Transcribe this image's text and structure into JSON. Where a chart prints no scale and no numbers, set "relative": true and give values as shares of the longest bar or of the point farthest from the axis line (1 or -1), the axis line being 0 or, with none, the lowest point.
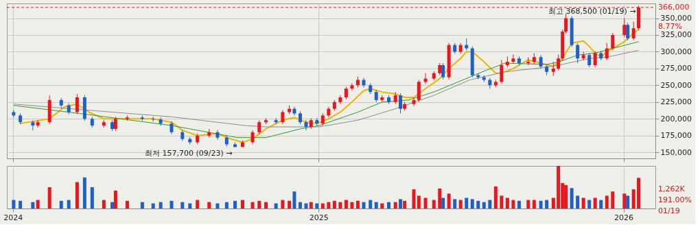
{
  "chart_data": [
    {
      "type": "candlestick",
      "x": [
        "2024-01-02",
        "2024-01-10",
        "2024-01-25",
        "2024-01-31",
        "2024-02-14",
        "2024-02-28",
        "2024-03-08",
        "2024-03-18",
        "2024-03-27",
        "2024-04-05",
        "2024-04-19",
        "2024-04-29",
        "2024-05-03",
        "2024-05-17",
        "2024-06-04",
        "2024-06-17",
        "2024-06-26",
        "2024-07-09",
        "2024-07-22",
        "2024-07-31",
        "2024-08-09",
        "2024-08-23",
        "2024-09-02",
        "2024-09-13",
        "2024-09-23",
        "2024-10-02",
        "2024-10-14",
        "2024-10-22",
        "2024-10-30",
        "2024-11-11",
        "2024-11-19",
        "2024-11-27",
        "2024-12-03",
        "2024-12-10",
        "2024-12-17",
        "2024-12-23",
        "2024-12-30",
        "2025-01-06",
        "2025-01-13",
        "2025-01-20",
        "2025-01-27",
        "2025-02-03",
        "2025-02-10",
        "2025-02-17",
        "2025-02-24",
        "2025-03-04",
        "2025-03-11",
        "2025-03-18",
        "2025-03-26",
        "2025-04-03",
        "2025-04-09",
        "2025-04-14",
        "2025-04-25",
        "2025-05-01",
        "2025-05-09",
        "2025-05-19",
        "2025-05-26",
        "2025-05-30",
        "2025-06-06",
        "2025-06-13",
        "2025-06-20",
        "2025-06-27",
        "2025-07-04",
        "2025-07-11",
        "2025-07-18",
        "2025-07-25",
        "2025-08-01",
        "2025-08-08",
        "2025-08-15",
        "2025-08-22",
        "2025-08-29",
        "2025-09-09",
        "2025-09-16",
        "2025-09-24",
        "2025-10-01",
        "2025-10-09",
        "2025-10-15",
        "2025-10-20",
        "2025-10-24",
        "2025-10-31",
        "2025-11-07",
        "2025-11-14",
        "2025-11-21",
        "2025-11-28",
        "2025-12-05",
        "2025-12-12",
        "2025-12-19",
        "2026-01-02",
        "2026-01-06",
        "2026-01-13",
        "2026-01-19"
      ],
      "ohlc": [
        [
          210000,
          213000,
          202000,
          205000
        ],
        [
          205000,
          208000,
          192000,
          195000
        ],
        [
          195000,
          198000,
          183000,
          190000
        ],
        [
          190000,
          198000,
          187000,
          195000
        ],
        [
          195000,
          235000,
          192000,
          228000
        ],
        [
          228000,
          231000,
          217000,
          220000
        ],
        [
          220000,
          223000,
          207000,
          210000
        ],
        [
          210000,
          237000,
          207000,
          232000
        ],
        [
          232000,
          235000,
          197000,
          200000
        ],
        [
          200000,
          203000,
          187000,
          190000
        ],
        [
          190000,
          198000,
          187000,
          195000
        ],
        [
          195000,
          198000,
          182000,
          185000
        ],
        [
          185000,
          203000,
          182000,
          200000
        ],
        [
          200000,
          205000,
          197000,
          202000
        ],
        [
          202000,
          205000,
          197000,
          200000
        ],
        [
          200000,
          203000,
          196000,
          199000
        ],
        [
          199000,
          202000,
          190000,
          193000
        ],
        [
          193000,
          196000,
          177000,
          180000
        ],
        [
          180000,
          183000,
          167000,
          170000
        ],
        [
          170000,
          173000,
          162000,
          165000
        ],
        [
          165000,
          178000,
          162000,
          175000
        ],
        [
          175000,
          185000,
          172000,
          180000
        ],
        [
          180000,
          183000,
          169000,
          172000
        ],
        [
          172000,
          175000,
          159000,
          162000
        ],
        [
          162000,
          165000,
          157700,
          158000
        ],
        [
          158000,
          168000,
          157900,
          165000
        ],
        [
          165000,
          183000,
          162000,
          180000
        ],
        [
          180000,
          198000,
          177000,
          195000
        ],
        [
          195000,
          201000,
          192000,
          198000
        ],
        [
          198000,
          201000,
          192000,
          195000
        ],
        [
          195000,
          213000,
          192000,
          210000
        ],
        [
          210000,
          220000,
          207000,
          215000
        ],
        [
          215000,
          218000,
          205000,
          208000
        ],
        [
          208000,
          211000,
          192000,
          195000
        ],
        [
          195000,
          198000,
          183000,
          188000
        ],
        [
          188000,
          201000,
          185000,
          198000
        ],
        [
          198000,
          201000,
          190000,
          193000
        ],
        [
          193000,
          208000,
          190000,
          205000
        ],
        [
          205000,
          218000,
          202000,
          215000
        ],
        [
          215000,
          228000,
          212000,
          225000
        ],
        [
          225000,
          235000,
          222000,
          232000
        ],
        [
          232000,
          248000,
          229000,
          245000
        ],
        [
          245000,
          253000,
          242000,
          250000
        ],
        [
          250000,
          263000,
          247000,
          258000
        ],
        [
          258000,
          261000,
          247000,
          250000
        ],
        [
          250000,
          253000,
          237000,
          240000
        ],
        [
          240000,
          243000,
          225000,
          228000
        ],
        [
          228000,
          235000,
          225000,
          232000
        ],
        [
          232000,
          235000,
          222000,
          225000
        ],
        [
          225000,
          240000,
          222000,
          235000
        ],
        [
          235000,
          238000,
          208000,
          215000
        ],
        [
          215000,
          225000,
          212000,
          222000
        ],
        [
          222000,
          231000,
          219000,
          228000
        ],
        [
          228000,
          258000,
          225000,
          255000
        ],
        [
          255000,
          268000,
          252000,
          260000
        ],
        [
          260000,
          271000,
          257000,
          268000
        ],
        [
          268000,
          283000,
          265000,
          280000
        ],
        [
          280000,
          283000,
          259000,
          262000
        ],
        [
          262000,
          313000,
          259000,
          310000
        ],
        [
          310000,
          313000,
          297000,
          300000
        ],
        [
          300000,
          313000,
          297000,
          310000
        ],
        [
          310000,
          320000,
          302000,
          305000
        ],
        [
          305000,
          308000,
          262000,
          265000
        ],
        [
          265000,
          268000,
          259000,
          262000
        ],
        [
          262000,
          265000,
          255000,
          258000
        ],
        [
          258000,
          261000,
          245000,
          250000
        ],
        [
          250000,
          258000,
          247000,
          255000
        ],
        [
          255000,
          288000,
          252000,
          280000
        ],
        [
          280000,
          293000,
          277000,
          285000
        ],
        [
          285000,
          296000,
          282000,
          290000
        ],
        [
          290000,
          293000,
          280000,
          283000
        ],
        [
          283000,
          292000,
          280000,
          285000
        ],
        [
          285000,
          298000,
          282000,
          292000
        ],
        [
          292000,
          295000,
          275000,
          278000
        ],
        [
          278000,
          281000,
          265000,
          270000
        ],
        [
          270000,
          285000,
          264000,
          275000
        ],
        [
          275000,
          296000,
          272000,
          290000
        ],
        [
          290000,
          333000,
          287000,
          330000
        ],
        [
          330000,
          357000,
          327000,
          350000
        ],
        [
          350000,
          353000,
          307000,
          310000
        ],
        [
          310000,
          313000,
          283000,
          290000
        ],
        [
          290000,
          300000,
          287000,
          295000
        ],
        [
          295000,
          298000,
          277000,
          280000
        ],
        [
          280000,
          301000,
          277000,
          298000
        ],
        [
          298000,
          301000,
          287000,
          290000
        ],
        [
          290000,
          313000,
          287000,
          305000
        ],
        [
          305000,
          328000,
          302000,
          325000
        ],
        [
          325000,
          350000,
          322000,
          340000
        ],
        [
          340000,
          343000,
          317000,
          320000
        ],
        [
          320000,
          345000,
          317000,
          335000
        ],
        [
          335000,
          368500,
          332000,
          366000
        ]
      ],
      "colors": [
        "#1f5fc8",
        "#1f5fc8",
        "#1f5fc8",
        "#e8171f",
        "#e8171f",
        "#1f5fc8",
        "#1f5fc8",
        "#e8171f",
        "#1f5fc8",
        "#1f5fc8",
        "#e8171f",
        "#1f5fc8",
        "#e8171f",
        "#e8171f",
        "#1f5fc8",
        "#1f5fc8",
        "#1f5fc8",
        "#1f5fc8",
        "#1f5fc8",
        "#1f5fc8",
        "#e8171f",
        "#e8171f",
        "#1f5fc8",
        "#1f5fc8",
        "#1f5fc8",
        "#e8171f",
        "#e8171f",
        "#e8171f",
        "#e8171f",
        "#1f5fc8",
        "#e8171f",
        "#e8171f",
        "#1f5fc8",
        "#1f5fc8",
        "#1f5fc8",
        "#e8171f",
        "#1f5fc8",
        "#e8171f",
        "#e8171f",
        "#e8171f",
        "#e8171f",
        "#e8171f",
        "#e8171f",
        "#e8171f",
        "#1f5fc8",
        "#1f5fc8",
        "#1f5fc8",
        "#e8171f",
        "#1f5fc8",
        "#e8171f",
        "#1f5fc8",
        "#e8171f",
        "#e8171f",
        "#e8171f",
        "#e8171f",
        "#e8171f",
        "#e8171f",
        "#1f5fc8",
        "#e8171f",
        "#1f5fc8",
        "#e8171f",
        "#1f5fc8",
        "#1f5fc8",
        "#1f5fc8",
        "#1f5fc8",
        "#1f5fc8",
        "#e8171f",
        "#e8171f",
        "#e8171f",
        "#e8171f",
        "#1f5fc8",
        "#e8171f",
        "#e8171f",
        "#1f5fc8",
        "#1f5fc8",
        "#e8171f",
        "#e8171f",
        "#e8171f",
        "#e8171f",
        "#1f5fc8",
        "#1f5fc8",
        "#e8171f",
        "#1f5fc8",
        "#e8171f",
        "#1f5fc8",
        "#e8171f",
        "#e8171f",
        "#e8171f",
        "#1f5fc8",
        "#e8171f",
        "#e8171f"
      ],
      "series": [
        {
          "type": "line",
          "color": "#f0b400",
          "x": [
            "2024-01-10",
            "2024-02-14",
            "2024-03-03",
            "2024-03-18",
            "2024-04-01",
            "2024-04-19",
            "2024-05-17",
            "2024-06-17",
            "2024-07-09",
            "2024-07-22",
            "2024-08-09",
            "2024-09-02",
            "2024-09-13",
            "2024-10-02",
            "2024-10-14",
            "2024-10-30",
            "2024-11-19",
            "2024-12-03",
            "2024-12-17",
            "2024-12-30",
            "2025-01-13",
            "2025-01-27",
            "2025-02-10",
            "2025-02-24",
            "2025-03-04",
            "2025-03-18",
            "2025-04-03",
            "2025-04-14",
            "2025-04-25",
            "2025-05-09",
            "2025-05-26",
            "2025-06-06",
            "2025-06-20",
            "2025-06-27",
            "2025-07-04",
            "2025-07-18",
            "2025-08-01",
            "2025-08-08",
            "2025-08-22",
            "2025-09-09",
            "2025-09-24",
            "2025-10-09",
            "2025-10-20",
            "2025-10-31",
            "2025-11-14",
            "2025-11-21",
            "2025-11-28",
            "2025-12-05",
            "2025-12-12",
            "2026-01-02",
            "2026-01-13",
            "2026-01-19"
          ],
          "values": [
            193000,
            200000,
            218000,
            222000,
            210000,
            200000,
            200000,
            200000,
            195000,
            183000,
            175000,
            178000,
            172000,
            165000,
            170000,
            185000,
            198000,
            202000,
            195000,
            193000,
            200000,
            210000,
            225000,
            242000,
            245000,
            240000,
            237000,
            232000,
            232000,
            245000,
            260000,
            275000,
            290000,
            300000,
            300000,
            285000,
            268000,
            268000,
            275000,
            288000,
            283000,
            278000,
            290000,
            313000,
            316000,
            308000,
            298000,
            292000,
            300000,
            315000,
            328000,
            333000
          ]
        },
        {
          "type": "line",
          "color": "#2e9a2e",
          "x": [
            "2024-01-02",
            "2024-04-09",
            "2024-07-09",
            "2024-09-26",
            "2024-10-30",
            "2024-12-10",
            "2025-01-02",
            "2025-02-17",
            "2025-03-18",
            "2025-04-18",
            "2025-05-19",
            "2025-06-17",
            "2025-07-16",
            "2025-08-12",
            "2025-09-09",
            "2025-10-01",
            "2025-10-16",
            "2025-11-07",
            "2025-11-28",
            "2025-12-19",
            "2026-01-19"
          ],
          "values": [
            220000,
            205000,
            190000,
            172000,
            172000,
            185000,
            190000,
            210000,
            225000,
            228000,
            240000,
            255000,
            270000,
            283000,
            282000,
            281000,
            285000,
            295000,
            298000,
            305000,
            315000
          ]
        },
        {
          "type": "line",
          "color": "#8c8c8c",
          "x": [
            "2024-01-02",
            "2024-04-09",
            "2024-07-09",
            "2024-10-05",
            "2024-10-30",
            "2025-01-02",
            "2025-02-17",
            "2025-04-03",
            "2025-05-19",
            "2025-07-01",
            "2025-08-12",
            "2025-09-24",
            "2025-10-16",
            "2025-11-21",
            "2025-12-12",
            "2026-01-19"
          ],
          "values": [
            222000,
            212000,
            203000,
            190000,
            188000,
            188000,
            198000,
            215000,
            235000,
            258000,
            270000,
            276000,
            280000,
            290000,
            292000,
            302000
          ]
        }
      ],
      "xlim": [
        "2023-12-29",
        "2026-02-04"
      ],
      "xticks": [
        {
          "value": "2024-01-01",
          "label": null
        },
        {
          "value": "2025-01-01",
          "label": null
        },
        {
          "value": "2026-01-01",
          "label": null
        }
      ],
      "ylim": [
        141000,
        372000
      ],
      "yticks": [
        {
          "value": 150000,
          "label": "150,000"
        },
        {
          "value": 175000,
          "label": "175,000"
        },
        {
          "value": 200000,
          "label": "200,000"
        },
        {
          "value": 225000,
          "label": "225,000"
        },
        {
          "value": 250000,
          "label": "250,000"
        },
        {
          "value": 275000,
          "label": "275,000"
        },
        {
          "value": 300000,
          "label": "300,000"
        },
        {
          "value": 325000,
          "label": "325,000"
        },
        {
          "value": 350000,
          "label": "350,000"
        }
      ],
      "grid": true,
      "tick_labels": "y",
      "ref_lines": [
        {
          "axis": "y",
          "value": 366000,
          "label": "366,000",
          "color": "#e8171f",
          "line_style": "dashed"
        }
      ],
      "annotations": [
        {
          "text": "최고 368,500 (01/19) →",
          "x": "2026-01-19",
          "y": 368500
        },
        {
          "text": "최저 157,700 (09/23) →",
          "x": "2024-09-23",
          "y": 157700
        },
        "8.77%"
      ]
    },
    {
      "type": "bar",
      "relative": true,
      "x": [
        "2024-01-02",
        "2024-01-10",
        "2024-01-25",
        "2024-01-31",
        "2024-02-14",
        "2024-02-28",
        "2024-03-08",
        "2024-03-18",
        "2024-03-27",
        "2024-04-05",
        "2024-04-19",
        "2024-04-29",
        "2024-05-03",
        "2024-05-17",
        "2024-06-04",
        "2024-06-17",
        "2024-06-26",
        "2024-07-09",
        "2024-07-22",
        "2024-07-31",
        "2024-08-09",
        "2024-08-23",
        "2024-09-02",
        "2024-09-13",
        "2024-09-23",
        "2024-10-02",
        "2024-10-14",
        "2024-10-22",
        "2024-10-30",
        "2024-11-11",
        "2024-11-19",
        "2024-11-27",
        "2024-12-03",
        "2024-12-10",
        "2024-12-17",
        "2024-12-23",
        "2024-12-30",
        "2025-01-06",
        "2025-01-13",
        "2025-01-20",
        "2025-01-27",
        "2025-02-03",
        "2025-02-10",
        "2025-02-17",
        "2025-02-24",
        "2025-03-04",
        "2025-03-11",
        "2025-03-18",
        "2025-03-26",
        "2025-04-03",
        "2025-04-09",
        "2025-04-14",
        "2025-04-25",
        "2025-05-01",
        "2025-05-09",
        "2025-05-19",
        "2025-05-26",
        "2025-05-30",
        "2025-06-06",
        "2025-06-13",
        "2025-06-20",
        "2025-06-27",
        "2025-07-04",
        "2025-07-11",
        "2025-07-18",
        "2025-07-25",
        "2025-08-01",
        "2025-08-08",
        "2025-08-15",
        "2025-08-22",
        "2025-08-29",
        "2025-09-09",
        "2025-09-16",
        "2025-09-24",
        "2025-10-01",
        "2025-10-09",
        "2025-10-15",
        "2025-10-20",
        "2025-10-24",
        "2025-10-31",
        "2025-11-07",
        "2025-11-14",
        "2025-11-21",
        "2025-11-28",
        "2025-12-05",
        "2025-12-12",
        "2025-12-19",
        "2026-01-02",
        "2026-01-06",
        "2026-01-13",
        "2026-01-19"
      ],
      "values": [
        0.2,
        0.18,
        0.15,
        0.2,
        0.5,
        0.18,
        0.2,
        0.62,
        0.73,
        0.5,
        0.2,
        0.15,
        0.42,
        0.18,
        0.15,
        0.12,
        0.15,
        0.18,
        0.15,
        0.12,
        0.2,
        0.15,
        0.12,
        0.15,
        0.18,
        0.2,
        0.15,
        0.18,
        0.15,
        0.12,
        0.2,
        0.18,
        0.4,
        0.15,
        0.12,
        0.15,
        0.12,
        0.12,
        0.15,
        0.18,
        0.15,
        0.2,
        0.15,
        0.18,
        0.15,
        0.2,
        0.15,
        0.12,
        0.15,
        0.15,
        0.22,
        0.18,
        0.45,
        0.3,
        0.25,
        0.2,
        0.47,
        0.25,
        0.35,
        0.22,
        0.2,
        0.25,
        0.22,
        0.18,
        0.15,
        0.2,
        0.52,
        0.3,
        0.25,
        0.2,
        0.18,
        0.2,
        0.2,
        0.18,
        0.2,
        0.25,
        1.0,
        0.6,
        0.55,
        0.48,
        0.3,
        0.25,
        0.2,
        0.25,
        0.2,
        0.3,
        0.4,
        0.35,
        0.3,
        0.45,
        0.72
      ],
      "colors": [
        "#1f5fc8",
        "#1f5fc8",
        "#1f5fc8",
        "#e8171f",
        "#e8171f",
        "#1f5fc8",
        "#1f5fc8",
        "#e8171f",
        "#1f5fc8",
        "#1f5fc8",
        "#e8171f",
        "#1f5fc8",
        "#e8171f",
        "#e8171f",
        "#1f5fc8",
        "#1f5fc8",
        "#1f5fc8",
        "#1f5fc8",
        "#1f5fc8",
        "#1f5fc8",
        "#e8171f",
        "#e8171f",
        "#1f5fc8",
        "#1f5fc8",
        "#1f5fc8",
        "#e8171f",
        "#e8171f",
        "#e8171f",
        "#e8171f",
        "#1f5fc8",
        "#e8171f",
        "#e8171f",
        "#1f5fc8",
        "#1f5fc8",
        "#1f5fc8",
        "#e8171f",
        "#1f5fc8",
        "#e8171f",
        "#e8171f",
        "#e8171f",
        "#e8171f",
        "#e8171f",
        "#e8171f",
        "#e8171f",
        "#1f5fc8",
        "#1f5fc8",
        "#1f5fc8",
        "#e8171f",
        "#1f5fc8",
        "#e8171f",
        "#1f5fc8",
        "#e8171f",
        "#e8171f",
        "#e8171f",
        "#e8171f",
        "#e8171f",
        "#e8171f",
        "#1f5fc8",
        "#e8171f",
        "#1f5fc8",
        "#e8171f",
        "#1f5fc8",
        "#1f5fc8",
        "#1f5fc8",
        "#1f5fc8",
        "#1f5fc8",
        "#e8171f",
        "#e8171f",
        "#e8171f",
        "#e8171f",
        "#1f5fc8",
        "#e8171f",
        "#e8171f",
        "#1f5fc8",
        "#1f5fc8",
        "#e8171f",
        "#e8171f",
        "#e8171f",
        "#e8171f",
        "#1f5fc8",
        "#1f5fc8",
        "#e8171f",
        "#1f5fc8",
        "#e8171f",
        "#1f5fc8",
        "#e8171f",
        "#e8171f",
        "#e8171f",
        "#1f5fc8",
        "#e8171f",
        "#e8171f"
      ],
      "xlim": [
        "2023-12-29",
        "2026-02-04"
      ],
      "xticks": [
        {
          "value": "2024-01-01",
          "label": "2024"
        },
        {
          "value": "2025-01-01",
          "label": "2025"
        },
        {
          "value": "2026-01-01",
          "label": "2026"
        }
      ],
      "grid": "x",
      "tick_labels": "x",
      "annotations": [
        "1,262K",
        "191.00%",
        "01/19"
      ]
    }
  ]
}
